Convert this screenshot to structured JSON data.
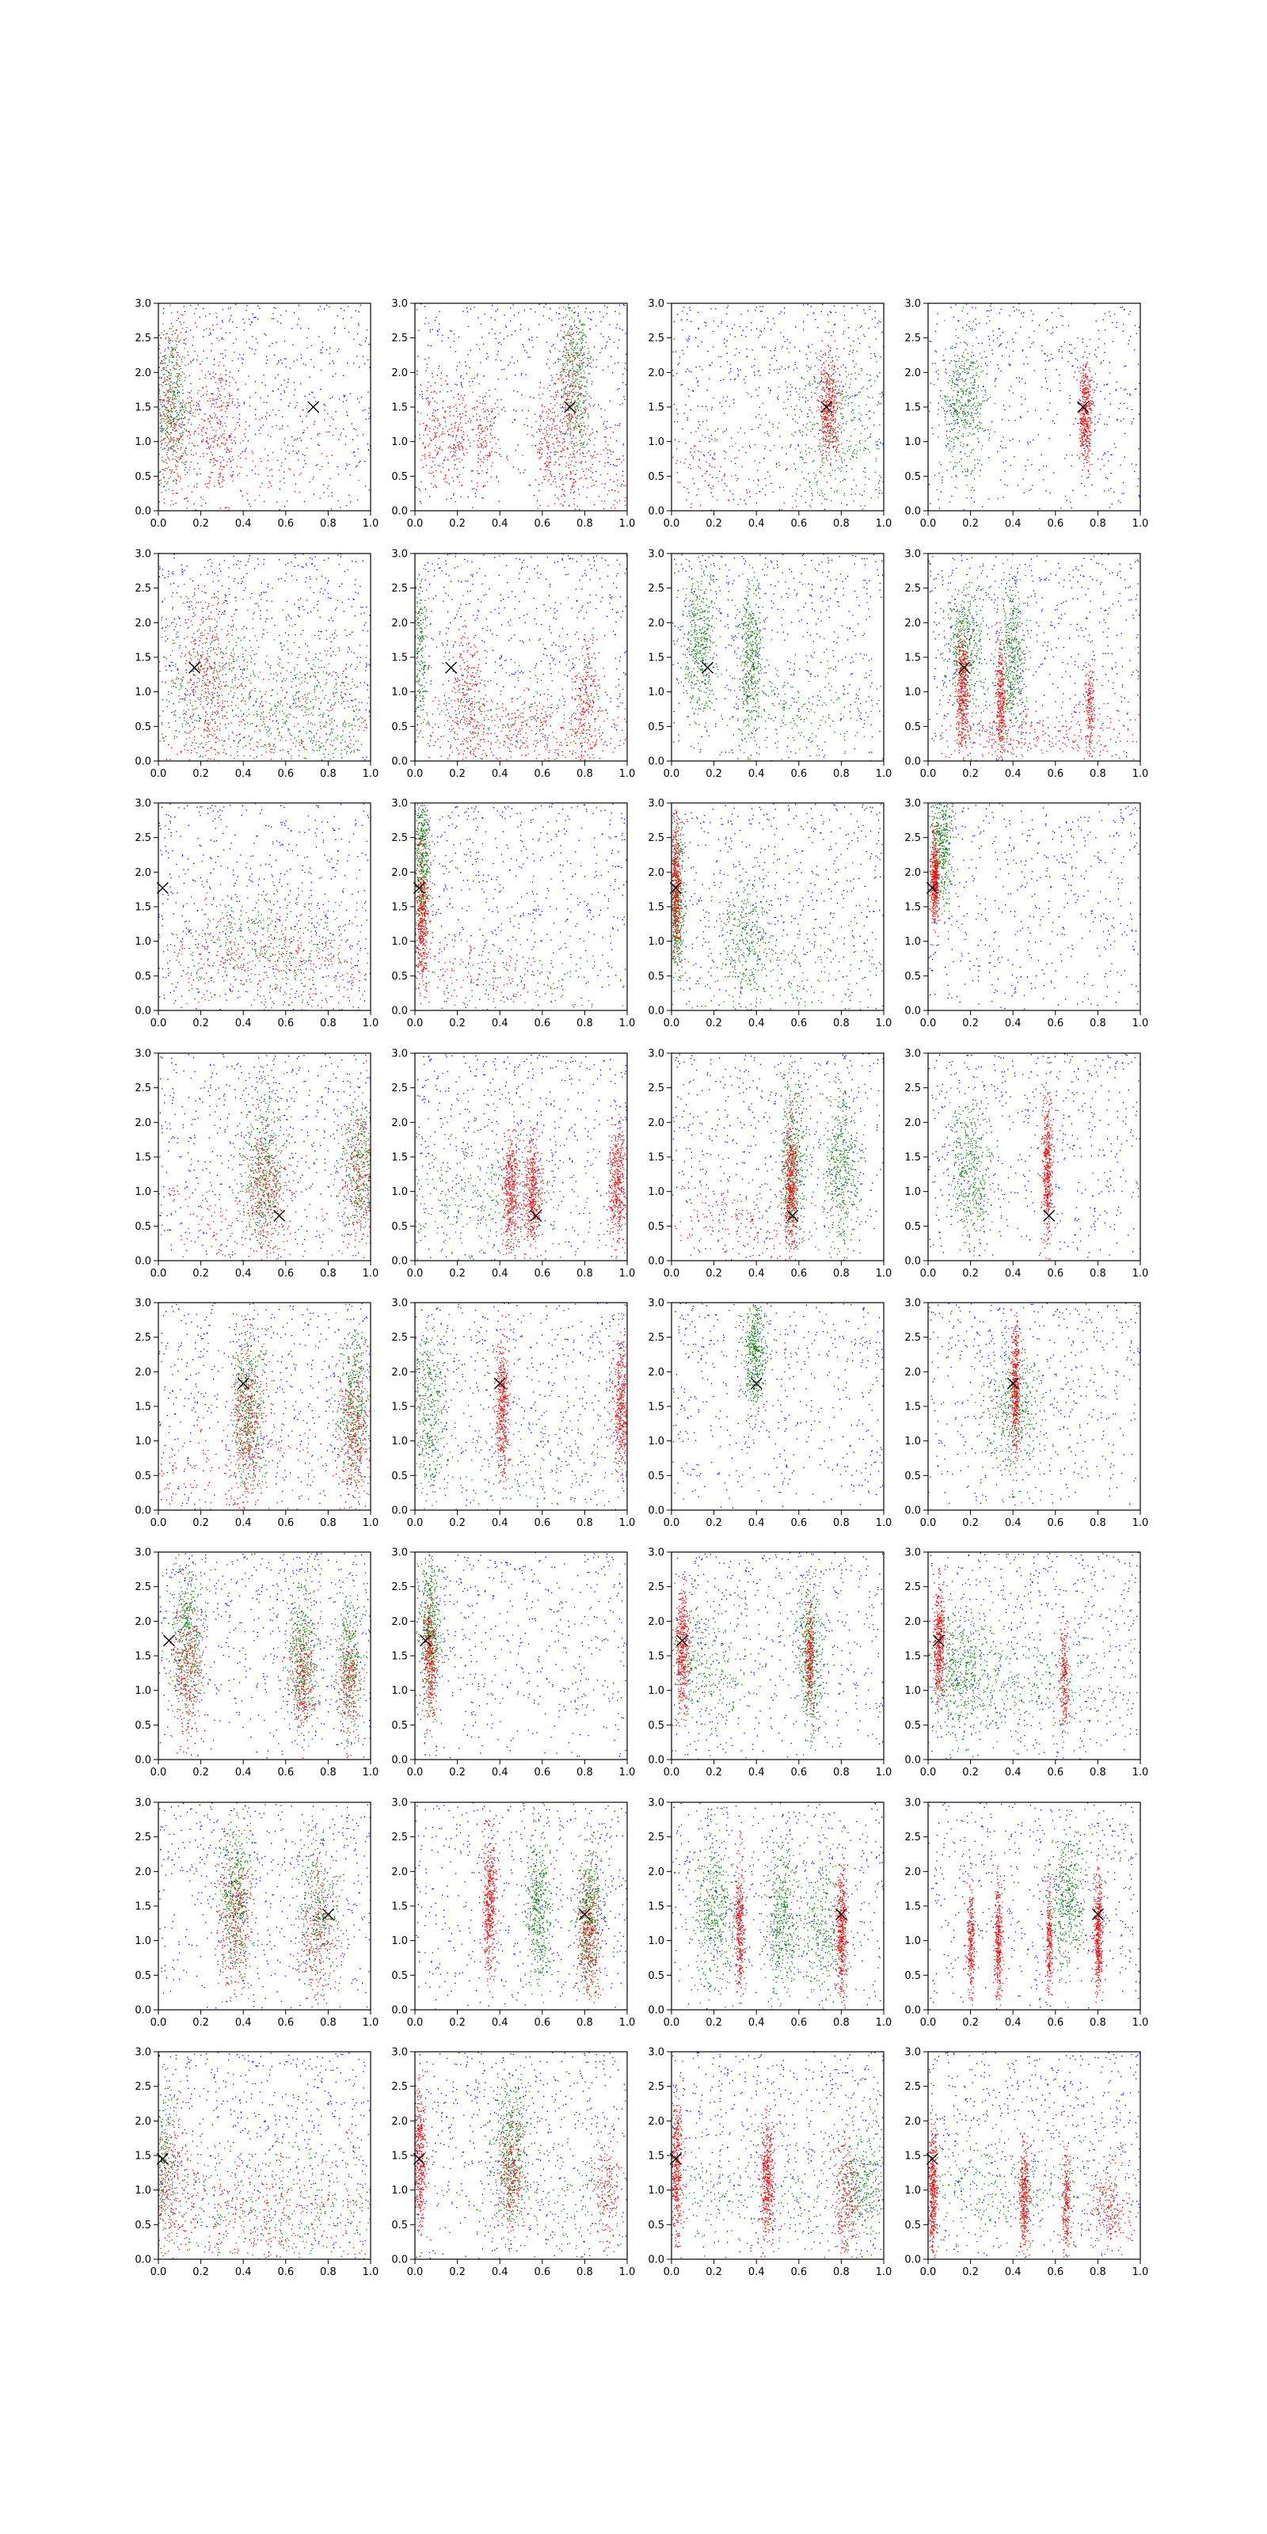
{
  "chart_data": {
    "type": "scatter",
    "layout": {
      "rows": 8,
      "cols": 4
    },
    "xlim": [
      0,
      1
    ],
    "ylim": [
      0,
      3
    ],
    "xticks": [
      "0.0",
      "0.2",
      "0.4",
      "0.6",
      "0.8",
      "1.0"
    ],
    "yticks": [
      "0.0",
      "0.5",
      "1.0",
      "1.5",
      "2.0",
      "2.5",
      "3.0"
    ],
    "xtick_values": [
      0,
      0.2,
      0.4,
      0.6,
      0.8,
      1.0
    ],
    "ytick_values": [
      0,
      0.5,
      1.0,
      1.5,
      2.0,
      2.5,
      3.0
    ],
    "series_colors": {
      "background": "#0000ff",
      "cluster_a": "#008000",
      "cluster_b": "#ff0000"
    },
    "marker": {
      "symbol": "x",
      "color": "#000000"
    },
    "panels": [
      {
        "marker": [
          0.73,
          1.5
        ],
        "green": [
          [
            0.06,
            1.55,
            0.05,
            0.6,
            1.0
          ]
        ],
        "red": [
          [
            0.06,
            1.4,
            0.06,
            0.7,
            0.8
          ],
          [
            0.28,
            1.3,
            0.05,
            0.6,
            0.6
          ],
          [
            0.5,
            0.7,
            0.3,
            0.5,
            0.4
          ]
        ]
      },
      {
        "marker": [
          0.73,
          1.5
        ],
        "green": [
          [
            0.75,
            1.9,
            0.04,
            0.65,
            1.0
          ]
        ],
        "red": [
          [
            0.73,
            1.4,
            0.04,
            0.6,
            0.6
          ],
          [
            0.08,
            1.1,
            0.04,
            0.4,
            0.3
          ],
          [
            0.2,
            1.1,
            0.03,
            0.4,
            0.3
          ],
          [
            0.32,
            1.1,
            0.03,
            0.4,
            0.3
          ],
          [
            0.62,
            1.1,
            0.03,
            0.4,
            0.3
          ],
          [
            0.85,
            0.6,
            0.15,
            0.4,
            0.4
          ]
        ]
      },
      {
        "marker": [
          0.73,
          1.5
        ],
        "green": [
          [
            0.78,
            1.2,
            0.15,
            0.6,
            1.0
          ]
        ],
        "red": [
          [
            0.74,
            1.5,
            0.025,
            0.35,
            1.0
          ],
          [
            0.2,
            0.6,
            0.2,
            0.4,
            0.3
          ]
        ]
      },
      {
        "marker": [
          0.73,
          1.5
        ],
        "green": [
          [
            0.17,
            1.5,
            0.05,
            0.5,
            1.0
          ]
        ],
        "red": [
          [
            0.74,
            1.4,
            0.015,
            0.35,
            1.0
          ]
        ]
      },
      {
        "marker": [
          0.17,
          1.35
        ],
        "green": [
          [
            0.2,
            1.2,
            0.2,
            0.7,
            1.0
          ],
          [
            0.7,
            0.7,
            0.2,
            0.5,
            1.0
          ]
        ],
        "red": [
          [
            0.22,
            1.2,
            0.07,
            0.7,
            0.8
          ],
          [
            0.6,
            0.6,
            0.3,
            0.5,
            0.8
          ]
        ]
      },
      {
        "marker": [
          0.17,
          1.35
        ],
        "green": [
          [
            0.02,
            1.6,
            0.02,
            0.6,
            0.5
          ],
          [
            0.5,
            0.6,
            0.3,
            0.5,
            0.5
          ]
        ],
        "red": [
          [
            0.25,
            1.0,
            0.04,
            0.5,
            0.5
          ],
          [
            0.8,
            0.9,
            0.03,
            0.5,
            0.5
          ],
          [
            0.5,
            0.4,
            0.3,
            0.3,
            1.0
          ]
        ]
      },
      {
        "marker": [
          0.17,
          1.35
        ],
        "green": [
          [
            0.13,
            1.7,
            0.04,
            0.55,
            1.0
          ],
          [
            0.37,
            1.5,
            0.03,
            0.55,
            1.0
          ],
          [
            0.6,
            0.7,
            0.2,
            0.4,
            0.5
          ]
        ]
      },
      {
        "marker": [
          0.17,
          1.35
        ],
        "green": [
          [
            0.17,
            1.6,
            0.05,
            0.5,
            1.0
          ],
          [
            0.4,
            1.5,
            0.03,
            0.6,
            1.0
          ]
        ],
        "red": [
          [
            0.16,
            1.0,
            0.015,
            0.45,
            1.0
          ],
          [
            0.34,
            0.9,
            0.012,
            0.4,
            0.8
          ],
          [
            0.76,
            0.8,
            0.01,
            0.3,
            0.4
          ],
          [
            0.5,
            0.4,
            0.3,
            0.2,
            0.8
          ]
        ]
      },
      {
        "marker": [
          0.02,
          1.77
        ],
        "green": [
          [
            0.5,
            0.8,
            0.25,
            0.5,
            1.0
          ]
        ],
        "red": [
          [
            0.5,
            0.7,
            0.28,
            0.45,
            1.0
          ]
        ]
      },
      {
        "marker": [
          0.02,
          1.77
        ],
        "green": [
          [
            0.03,
            2.2,
            0.02,
            0.55,
            1.0
          ],
          [
            0.5,
            0.4,
            0.3,
            0.3,
            0.3
          ]
        ],
        "red": [
          [
            0.03,
            1.3,
            0.015,
            0.5,
            1.0
          ],
          [
            0.35,
            0.5,
            0.2,
            0.3,
            0.3
          ]
        ]
      },
      {
        "marker": [
          0.02,
          1.77
        ],
        "green": [
          [
            0.02,
            1.5,
            0.02,
            0.55,
            1.0
          ],
          [
            0.35,
            1.1,
            0.06,
            0.5,
            0.7
          ],
          [
            0.55,
            0.6,
            0.3,
            0.4,
            0.5
          ]
        ],
        "red": [
          [
            0.02,
            1.8,
            0.012,
            0.45,
            1.0
          ]
        ]
      },
      {
        "marker": [
          0.02,
          1.77
        ],
        "green": [
          [
            0.06,
            2.4,
            0.03,
            0.45,
            1.0
          ]
        ],
        "red": [
          [
            0.03,
            1.9,
            0.01,
            0.3,
            1.0
          ]
        ]
      },
      {
        "marker": [
          0.57,
          0.65
        ],
        "green": [
          [
            0.5,
            1.3,
            0.05,
            0.6,
            1.0
          ],
          [
            0.95,
            1.3,
            0.05,
            0.6,
            0.8
          ]
        ],
        "red": [
          [
            0.5,
            1.1,
            0.05,
            0.5,
            0.7
          ],
          [
            0.95,
            1.2,
            0.04,
            0.5,
            0.6
          ],
          [
            0.3,
            0.6,
            0.3,
            0.4,
            0.5
          ]
        ]
      },
      {
        "marker": [
          0.57,
          0.65
        ],
        "green": [
          [
            0.3,
            0.9,
            0.3,
            0.5,
            1.0
          ]
        ],
        "red": [
          [
            0.45,
            1.0,
            0.02,
            0.4,
            1.0
          ],
          [
            0.55,
            1.0,
            0.02,
            0.4,
            1.0
          ],
          [
            0.95,
            1.1,
            0.02,
            0.45,
            1.0
          ]
        ]
      },
      {
        "marker": [
          0.57,
          0.65
        ],
        "green": [
          [
            0.57,
            1.4,
            0.03,
            0.6,
            1.0
          ],
          [
            0.8,
            1.3,
            0.04,
            0.6,
            1.0
          ]
        ],
        "red": [
          [
            0.56,
            1.1,
            0.015,
            0.5,
            1.0
          ],
          [
            0.3,
            0.5,
            0.2,
            0.3,
            0.5
          ]
        ]
      },
      {
        "marker": [
          0.57,
          0.65
        ],
        "green": [
          [
            0.2,
            1.3,
            0.05,
            0.55,
            1.0
          ]
        ],
        "red": [
          [
            0.56,
            1.3,
            0.012,
            0.5,
            1.0
          ]
        ]
      },
      {
        "marker": [
          0.4,
          1.83
        ],
        "green": [
          [
            0.42,
            1.5,
            0.04,
            0.6,
            1.0
          ],
          [
            0.92,
            1.5,
            0.04,
            0.6,
            1.0
          ]
        ],
        "red": [
          [
            0.42,
            1.3,
            0.04,
            0.6,
            0.8
          ],
          [
            0.92,
            1.2,
            0.04,
            0.5,
            0.7
          ],
          [
            0.3,
            0.6,
            0.3,
            0.4,
            0.5
          ]
        ]
      },
      {
        "marker": [
          0.4,
          1.83
        ],
        "green": [
          [
            0.06,
            1.5,
            0.05,
            0.6,
            1.0
          ],
          [
            0.6,
            0.7,
            0.3,
            0.4,
            0.5
          ]
        ],
        "red": [
          [
            0.41,
            1.5,
            0.015,
            0.5,
            1.0
          ],
          [
            0.97,
            1.5,
            0.02,
            0.5,
            1.0
          ]
        ]
      },
      {
        "marker": [
          0.4,
          1.83
        ],
        "green": [
          [
            0.39,
            2.3,
            0.025,
            0.45,
            1.0
          ]
        ]
      },
      {
        "marker": [
          0.4,
          1.83
        ],
        "green": [
          [
            0.4,
            1.4,
            0.07,
            0.5,
            1.0
          ]
        ],
        "red": [
          [
            0.41,
            1.8,
            0.01,
            0.45,
            1.0
          ]
        ]
      },
      {
        "marker": [
          0.05,
          1.72
        ],
        "green": [
          [
            0.13,
            1.8,
            0.04,
            0.55,
            1.0
          ],
          [
            0.68,
            1.5,
            0.04,
            0.55,
            1.0
          ],
          [
            0.9,
            1.4,
            0.03,
            0.5,
            0.7
          ]
        ],
        "red": [
          [
            0.13,
            1.3,
            0.04,
            0.5,
            0.7
          ],
          [
            0.68,
            1.2,
            0.03,
            0.4,
            0.6
          ],
          [
            0.9,
            1.1,
            0.03,
            0.4,
            0.5
          ]
        ]
      },
      {
        "marker": [
          0.05,
          1.72
        ],
        "green": [
          [
            0.07,
            1.9,
            0.025,
            0.5,
            1.0
          ]
        ],
        "red": [
          [
            0.07,
            1.4,
            0.015,
            0.45,
            0.8
          ]
        ]
      },
      {
        "marker": [
          0.05,
          1.72
        ],
        "green": [
          [
            0.65,
            1.5,
            0.03,
            0.55,
            1.0
          ],
          [
            0.15,
            1.3,
            0.1,
            0.5,
            0.7
          ]
        ],
        "red": [
          [
            0.05,
            1.6,
            0.015,
            0.45,
            1.0
          ],
          [
            0.65,
            1.5,
            0.01,
            0.4,
            0.6
          ]
        ]
      },
      {
        "marker": [
          0.05,
          1.72
        ],
        "green": [
          [
            0.15,
            1.3,
            0.07,
            0.5,
            1.0
          ],
          [
            0.45,
            1.1,
            0.3,
            0.5,
            1.0
          ]
        ],
        "red": [
          [
            0.05,
            1.7,
            0.012,
            0.4,
            1.0
          ],
          [
            0.64,
            1.2,
            0.01,
            0.4,
            0.5
          ]
        ]
      },
      {
        "marker": [
          0.8,
          1.38
        ],
        "green": [
          [
            0.36,
            1.6,
            0.04,
            0.6,
            1.0
          ],
          [
            0.75,
            1.4,
            0.05,
            0.55,
            0.7
          ]
        ],
        "red": [
          [
            0.36,
            1.3,
            0.04,
            0.5,
            0.7
          ],
          [
            0.75,
            1.1,
            0.05,
            0.5,
            0.6
          ]
        ]
      },
      {
        "marker": [
          0.8,
          1.38
        ],
        "green": [
          [
            0.58,
            1.4,
            0.03,
            0.55,
            1.0
          ],
          [
            0.82,
            1.3,
            0.03,
            0.55,
            1.0
          ]
        ],
        "red": [
          [
            0.35,
            1.5,
            0.015,
            0.5,
            1.0
          ],
          [
            0.82,
            1.1,
            0.03,
            0.45,
            0.8
          ]
        ]
      },
      {
        "marker": [
          0.8,
          1.38
        ],
        "green": [
          [
            0.2,
            1.4,
            0.05,
            0.55,
            1.0
          ],
          [
            0.52,
            1.3,
            0.04,
            0.55,
            1.0
          ],
          [
            0.72,
            1.1,
            0.05,
            0.5,
            0.7
          ]
        ],
        "red": [
          [
            0.32,
            1.2,
            0.012,
            0.45,
            0.8
          ],
          [
            0.8,
            1.2,
            0.012,
            0.45,
            1.0
          ]
        ]
      },
      {
        "marker": [
          0.8,
          1.38
        ],
        "green": [
          [
            0.65,
            1.6,
            0.05,
            0.5,
            1.0
          ]
        ],
        "red": [
          [
            0.2,
            1.0,
            0.008,
            0.4,
            0.6
          ],
          [
            0.33,
            1.0,
            0.01,
            0.45,
            0.8
          ],
          [
            0.57,
            1.0,
            0.008,
            0.4,
            0.5
          ],
          [
            0.8,
            1.1,
            0.01,
            0.45,
            1.0
          ]
        ]
      },
      {
        "marker": [
          0.02,
          1.45
        ],
        "green": [
          [
            0.02,
            1.5,
            0.03,
            0.6,
            0.6
          ],
          [
            0.55,
            0.9,
            0.3,
            0.5,
            1.0
          ]
        ],
        "red": [
          [
            0.05,
            1.1,
            0.05,
            0.5,
            0.5
          ],
          [
            0.5,
            0.7,
            0.3,
            0.45,
            1.0
          ]
        ]
      },
      {
        "marker": [
          0.02,
          1.45
        ],
        "green": [
          [
            0.45,
            1.5,
            0.04,
            0.55,
            1.0
          ],
          [
            0.7,
            0.8,
            0.2,
            0.5,
            0.5
          ]
        ],
        "red": [
          [
            0.02,
            1.5,
            0.015,
            0.55,
            1.0
          ],
          [
            0.45,
            1.2,
            0.03,
            0.45,
            0.6
          ],
          [
            0.9,
            1.0,
            0.03,
            0.4,
            0.4
          ]
        ]
      },
      {
        "marker": [
          0.02,
          1.45
        ],
        "green": [
          [
            0.4,
            1.0,
            0.3,
            0.45,
            0.7
          ],
          [
            0.9,
            1.1,
            0.06,
            0.5,
            0.8
          ]
        ],
        "red": [
          [
            0.02,
            1.3,
            0.015,
            0.5,
            1.0
          ],
          [
            0.45,
            1.1,
            0.015,
            0.45,
            1.0
          ],
          [
            0.82,
            0.9,
            0.03,
            0.45,
            0.6
          ]
        ]
      },
      {
        "marker": [
          0.02,
          1.45
        ],
        "green": [
          [
            0.4,
            1.0,
            0.3,
            0.4,
            1.0
          ]
        ],
        "red": [
          [
            0.02,
            1.0,
            0.012,
            0.45,
            1.0
          ],
          [
            0.45,
            0.9,
            0.012,
            0.4,
            0.8
          ],
          [
            0.65,
            0.8,
            0.01,
            0.4,
            0.5
          ],
          [
            0.85,
            0.7,
            0.05,
            0.35,
            0.5
          ]
        ]
      }
    ]
  }
}
